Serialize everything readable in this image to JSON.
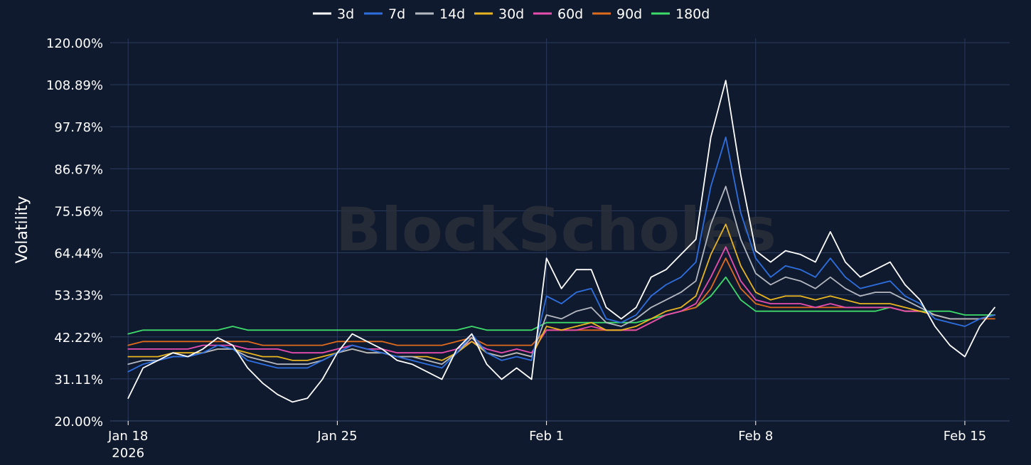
{
  "chart_data": {
    "type": "line",
    "title": "",
    "xlabel": "",
    "ylabel": "Volatility",
    "ylim": [
      20.0,
      120.0
    ],
    "y_ticks": [
      "20.00%",
      "31.11%",
      "42.22%",
      "53.33%",
      "64.44%",
      "75.56%",
      "86.67%",
      "97.78%",
      "108.89%",
      "120.00%"
    ],
    "x_ticks": [
      {
        "label": "Jan 18",
        "sublabel": "2026",
        "day": 0
      },
      {
        "label": "Jan 25",
        "sublabel": "",
        "day": 7
      },
      {
        "label": "Feb 1",
        "sublabel": "",
        "day": 14
      },
      {
        "label": "Feb 8",
        "sublabel": "",
        "day": 21
      },
      {
        "label": "Feb 15",
        "sublabel": "",
        "day": 28
      }
    ],
    "x_range_days": [
      -0.6,
      29.5
    ],
    "grid": true,
    "legend_position": "top-center",
    "watermark": "BlockScholes",
    "x": [
      0,
      0.5,
      1,
      1.5,
      2,
      2.5,
      3,
      3.5,
      4,
      4.5,
      5,
      5.5,
      6,
      6.5,
      7,
      7.5,
      8,
      8.5,
      9,
      9.5,
      10,
      10.5,
      11,
      11.5,
      12,
      12.5,
      13,
      13.5,
      14,
      14.5,
      15,
      15.5,
      16,
      16.5,
      17,
      17.5,
      18,
      18.5,
      19,
      19.5,
      20,
      20.5,
      21,
      21.5,
      22,
      22.5,
      23,
      23.5,
      24,
      24.5,
      25,
      25.5,
      26,
      26.5,
      27,
      27.5,
      28,
      28.5,
      29
    ],
    "series": [
      {
        "name": "3d",
        "color": "#ffffff",
        "values": [
          26,
          34,
          36,
          38,
          37,
          39,
          42,
          40,
          34,
          30,
          27,
          25,
          26,
          31,
          38,
          43,
          41,
          39,
          36,
          35,
          33,
          31,
          39,
          43,
          35,
          31,
          34,
          31,
          63,
          55,
          60,
          60,
          50,
          47,
          50,
          58,
          60,
          64,
          68,
          95,
          110,
          85,
          65,
          62,
          65,
          64,
          62,
          70,
          62,
          58,
          60,
          62,
          56,
          52,
          45,
          40,
          37,
          45,
          50
        ]
      },
      {
        "name": "7d",
        "color": "#2e6fe0",
        "values": [
          33,
          35,
          36,
          37,
          37,
          38,
          40,
          39,
          36,
          35,
          34,
          34,
          34,
          36,
          38,
          40,
          39,
          38,
          37,
          36,
          35,
          34,
          38,
          43,
          38,
          36,
          37,
          36,
          53,
          51,
          54,
          55,
          47,
          46,
          48,
          53,
          56,
          58,
          62,
          82,
          95,
          75,
          63,
          58,
          61,
          60,
          58,
          63,
          58,
          55,
          56,
          57,
          53,
          51,
          47,
          46,
          45,
          47,
          48
        ]
      },
      {
        "name": "14d",
        "color": "#b4b8c0",
        "values": [
          35,
          36,
          36,
          37,
          37,
          38,
          39,
          39,
          37,
          36,
          35,
          35,
          35,
          36,
          38,
          39,
          38,
          38,
          37,
          37,
          36,
          35,
          38,
          42,
          38,
          37,
          38,
          37,
          48,
          47,
          49,
          50,
          46,
          45,
          47,
          50,
          52,
          54,
          57,
          72,
          82,
          68,
          59,
          56,
          58,
          57,
          55,
          58,
          55,
          53,
          54,
          54,
          52,
          50,
          48,
          47,
          47,
          47,
          48
        ]
      },
      {
        "name": "30d",
        "color": "#e8b420",
        "values": [
          37,
          37,
          37,
          38,
          38,
          38,
          39,
          39,
          38,
          37,
          37,
          36,
          36,
          37,
          38,
          39,
          38,
          38,
          37,
          37,
          37,
          36,
          38,
          41,
          38,
          37,
          38,
          37,
          45,
          44,
          45,
          46,
          44,
          44,
          45,
          47,
          49,
          50,
          53,
          64,
          72,
          61,
          54,
          52,
          53,
          53,
          52,
          53,
          52,
          51,
          51,
          51,
          50,
          49,
          48,
          47,
          47,
          47,
          48
        ]
      },
      {
        "name": "60d",
        "color": "#e84db0",
        "values": [
          39,
          39,
          39,
          39,
          39,
          40,
          40,
          40,
          39,
          39,
          39,
          38,
          38,
          38,
          39,
          40,
          39,
          39,
          38,
          38,
          38,
          38,
          39,
          41,
          39,
          38,
          39,
          38,
          44,
          44,
          44,
          45,
          44,
          44,
          44,
          46,
          48,
          49,
          51,
          58,
          66,
          57,
          52,
          51,
          51,
          51,
          50,
          51,
          50,
          50,
          50,
          50,
          49,
          49,
          48,
          47,
          47,
          47,
          48
        ]
      },
      {
        "name": "90d",
        "color": "#e06a1c",
        "values": [
          40,
          41,
          41,
          41,
          41,
          41,
          41,
          41,
          41,
          40,
          40,
          40,
          40,
          40,
          41,
          41,
          41,
          41,
          40,
          40,
          40,
          40,
          41,
          42,
          40,
          40,
          40,
          40,
          44,
          44,
          44,
          44,
          44,
          44,
          44,
          46,
          48,
          49,
          50,
          55,
          63,
          55,
          51,
          50,
          50,
          50,
          50,
          50,
          50,
          50,
          50,
          50,
          49,
          49,
          48,
          47,
          47,
          47,
          47
        ]
      },
      {
        "name": "180d",
        "color": "#3ddc6a",
        "values": [
          43,
          44,
          44,
          44,
          44,
          44,
          44,
          45,
          44,
          44,
          44,
          44,
          44,
          44,
          44,
          44,
          44,
          44,
          44,
          44,
          44,
          44,
          44,
          45,
          44,
          44,
          44,
          44,
          46,
          46,
          46,
          46,
          46,
          46,
          46,
          47,
          48,
          49,
          50,
          53,
          58,
          52,
          49,
          49,
          49,
          49,
          49,
          49,
          49,
          49,
          49,
          50,
          49,
          49,
          49,
          49,
          48,
          48,
          48
        ]
      }
    ]
  }
}
